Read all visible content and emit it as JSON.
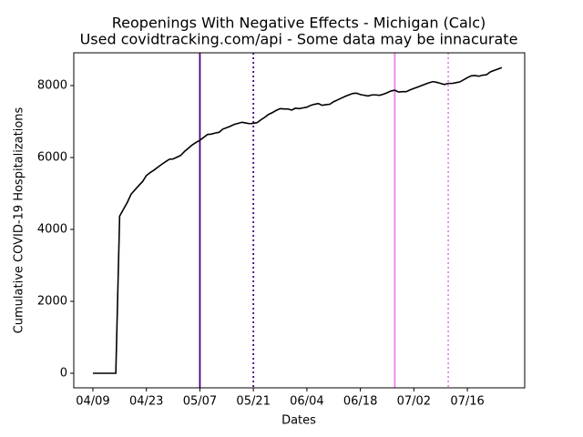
{
  "chart_data": {
    "type": "line",
    "title": "Reopenings With Negative Effects - Michigan (Calc)",
    "subtitle": "Used covidtracking.com/api - Some data may be innacurate",
    "xlabel": "Dates",
    "ylabel": "Cumulative COVID-19 Hospitalizations",
    "color": "#000000",
    "x": [
      "04/09",
      "04/10",
      "04/11",
      "04/12",
      "04/13",
      "04/14",
      "04/15",
      "04/16",
      "04/17",
      "04/18",
      "04/19",
      "04/20",
      "04/21",
      "04/22",
      "04/23",
      "04/24",
      "04/25",
      "04/26",
      "04/27",
      "04/28",
      "04/29",
      "04/30",
      "05/01",
      "05/02",
      "05/03",
      "05/04",
      "05/05",
      "05/06",
      "05/07",
      "05/08",
      "05/09",
      "05/10",
      "05/11",
      "05/12",
      "05/13",
      "05/14",
      "05/15",
      "05/16",
      "05/17",
      "05/18",
      "05/19",
      "05/20",
      "05/21",
      "05/22",
      "05/23",
      "05/24",
      "05/25",
      "05/26",
      "05/27",
      "05/28",
      "05/29",
      "05/30",
      "05/31",
      "06/01",
      "06/02",
      "06/03",
      "06/04",
      "06/05",
      "06/06",
      "06/07",
      "06/08",
      "06/09",
      "06/10",
      "06/11",
      "06/12",
      "06/13",
      "06/14",
      "06/15",
      "06/16",
      "06/17",
      "06/18",
      "06/19",
      "06/20",
      "06/21",
      "06/22",
      "06/23",
      "06/24",
      "06/25",
      "06/26",
      "06/27",
      "06/28",
      "06/29",
      "06/30",
      "07/01",
      "07/02",
      "07/03",
      "07/04",
      "07/05",
      "07/06",
      "07/07",
      "07/08",
      "07/09",
      "07/10",
      "07/11",
      "07/12",
      "07/13",
      "07/14",
      "07/15",
      "07/16",
      "07/17",
      "07/18",
      "07/19",
      "07/20",
      "07/21",
      "07/22",
      "07/23",
      "07/24",
      "07/25"
    ],
    "values": [
      0,
      0,
      0,
      0,
      0,
      0,
      0,
      4370,
      4560,
      4750,
      4980,
      5100,
      5220,
      5330,
      5500,
      5580,
      5650,
      5730,
      5810,
      5880,
      5950,
      5960,
      6010,
      6060,
      6170,
      6260,
      6350,
      6420,
      6480,
      6560,
      6640,
      6650,
      6680,
      6700,
      6790,
      6830,
      6870,
      6920,
      6950,
      6980,
      6960,
      6940,
      6950,
      6970,
      7050,
      7120,
      7200,
      7250,
      7310,
      7360,
      7350,
      7350,
      7320,
      7370,
      7360,
      7380,
      7400,
      7450,
      7480,
      7500,
      7450,
      7470,
      7480,
      7550,
      7600,
      7650,
      7700,
      7740,
      7780,
      7790,
      7750,
      7730,
      7710,
      7740,
      7740,
      7730,
      7760,
      7800,
      7850,
      7870,
      7820,
      7830,
      7830,
      7880,
      7920,
      7960,
      8000,
      8040,
      8080,
      8110,
      8090,
      8060,
      8030,
      8060,
      8060,
      8080,
      8100,
      8160,
      8220,
      8270,
      8280,
      8260,
      8290,
      8300,
      8380,
      8420,
      8460,
      8500
    ],
    "xlim": [
      "04/04",
      "07/31"
    ],
    "xticks": [
      "04/09",
      "04/23",
      "05/07",
      "05/21",
      "06/04",
      "06/18",
      "07/02",
      "07/16"
    ],
    "ylim": [
      -405,
      8911
    ],
    "yticks": [
      0,
      2000,
      4000,
      6000,
      8000
    ],
    "vlines": [
      {
        "x": "05/07",
        "color": "#4b0082",
        "style": "solid"
      },
      {
        "x": "05/21",
        "color": "#4b0082",
        "style": "dotted"
      },
      {
        "x": "06/27",
        "color": "#ee82ee",
        "style": "solid"
      },
      {
        "x": "07/11",
        "color": "#ee82ee",
        "style": "dotted"
      }
    ]
  }
}
